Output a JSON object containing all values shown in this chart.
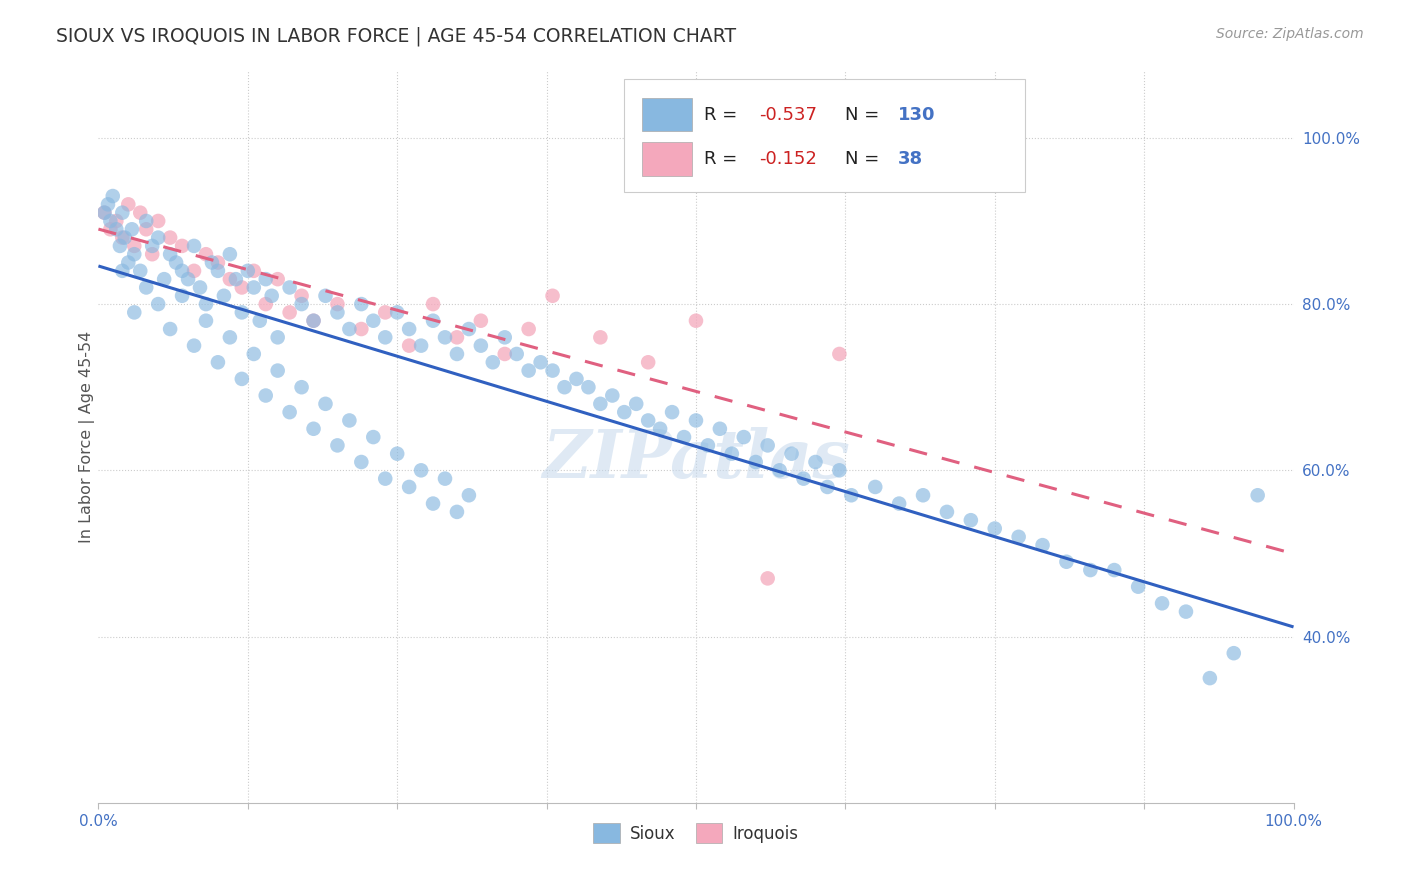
{
  "title": "SIOUX VS IROQUOIS IN LABOR FORCE | AGE 45-54 CORRELATION CHART",
  "source": "Source: ZipAtlas.com",
  "ylabel": "In Labor Force | Age 45-54",
  "legend_sioux": "Sioux",
  "legend_iroquois": "Iroquois",
  "r_sioux": -0.537,
  "n_sioux": 130,
  "r_iroquois": -0.152,
  "n_iroquois": 38,
  "sioux_color": "#88b8e0",
  "iroquois_color": "#f4a8bc",
  "sioux_line_color": "#3060c0",
  "iroquois_line_color": "#e06080",
  "watermark": "ZIPatlas",
  "bg_color": "#ffffff",
  "grid_color": "#cccccc",
  "tick_color": "#4472c4",
  "title_color": "#333333",
  "source_color": "#999999",
  "ylabel_color": "#555555",
  "sioux_x": [
    0.5,
    0.8,
    1.0,
    1.2,
    1.5,
    1.8,
    2.0,
    2.2,
    2.5,
    2.8,
    3.0,
    3.5,
    4.0,
    4.5,
    5.0,
    5.5,
    6.0,
    6.5,
    7.0,
    7.5,
    8.0,
    8.5,
    9.0,
    9.5,
    10.0,
    10.5,
    11.0,
    11.5,
    12.0,
    12.5,
    13.0,
    13.5,
    14.0,
    14.5,
    15.0,
    16.0,
    17.0,
    18.0,
    19.0,
    20.0,
    21.0,
    22.0,
    23.0,
    24.0,
    25.0,
    26.0,
    27.0,
    28.0,
    29.0,
    30.0,
    31.0,
    32.0,
    33.0,
    34.0,
    35.0,
    36.0,
    37.0,
    38.0,
    39.0,
    40.0,
    41.0,
    42.0,
    43.0,
    44.0,
    45.0,
    46.0,
    47.0,
    48.0,
    49.0,
    50.0,
    51.0,
    52.0,
    53.0,
    54.0,
    55.0,
    56.0,
    57.0,
    58.0,
    59.0,
    60.0,
    61.0,
    62.0,
    63.0,
    65.0,
    67.0,
    69.0,
    71.0,
    73.0,
    75.0,
    77.0,
    79.0,
    81.0,
    83.0,
    85.0,
    87.0,
    89.0,
    91.0,
    93.0,
    95.0,
    97.0,
    2.0,
    3.0,
    4.0,
    5.0,
    6.0,
    7.0,
    8.0,
    9.0,
    10.0,
    11.0,
    12.0,
    13.0,
    14.0,
    15.0,
    16.0,
    17.0,
    18.0,
    19.0,
    20.0,
    21.0,
    22.0,
    23.0,
    24.0,
    25.0,
    26.0,
    27.0,
    28.0,
    29.0,
    30.0,
    31.0
  ],
  "sioux_y": [
    91,
    92,
    90,
    93,
    89,
    87,
    91,
    88,
    85,
    89,
    86,
    84,
    90,
    87,
    88,
    83,
    86,
    85,
    84,
    83,
    87,
    82,
    80,
    85,
    84,
    81,
    86,
    83,
    79,
    84,
    82,
    78,
    83,
    81,
    76,
    82,
    80,
    78,
    81,
    79,
    77,
    80,
    78,
    76,
    79,
    77,
    75,
    78,
    76,
    74,
    77,
    75,
    73,
    76,
    74,
    72,
    73,
    72,
    70,
    71,
    70,
    68,
    69,
    67,
    68,
    66,
    65,
    67,
    64,
    66,
    63,
    65,
    62,
    64,
    61,
    63,
    60,
    62,
    59,
    61,
    58,
    60,
    57,
    58,
    56,
    57,
    55,
    54,
    53,
    52,
    51,
    49,
    48,
    48,
    46,
    44,
    43,
    35,
    38,
    57,
    84,
    79,
    82,
    80,
    77,
    81,
    75,
    78,
    73,
    76,
    71,
    74,
    69,
    72,
    67,
    70,
    65,
    68,
    63,
    66,
    61,
    64,
    59,
    62,
    58,
    60,
    56,
    59,
    55,
    57
  ],
  "iroquois_x": [
    0.5,
    1.0,
    1.5,
    2.0,
    2.5,
    3.0,
    3.5,
    4.0,
    4.5,
    5.0,
    6.0,
    7.0,
    8.0,
    9.0,
    10.0,
    11.0,
    12.0,
    13.0,
    14.0,
    15.0,
    16.0,
    17.0,
    18.0,
    20.0,
    22.0,
    24.0,
    26.0,
    28.0,
    30.0,
    32.0,
    34.0,
    36.0,
    38.0,
    42.0,
    46.0,
    50.0,
    56.0,
    62.0
  ],
  "iroquois_y": [
    91,
    89,
    90,
    88,
    92,
    87,
    91,
    89,
    86,
    90,
    88,
    87,
    84,
    86,
    85,
    83,
    82,
    84,
    80,
    83,
    79,
    81,
    78,
    80,
    77,
    79,
    75,
    80,
    76,
    78,
    74,
    77,
    81,
    76,
    73,
    78,
    47,
    74
  ],
  "xlim": [
    0,
    100
  ],
  "ylim": [
    20,
    108
  ],
  "yticks": [
    100,
    80,
    60,
    40
  ],
  "yticklabels": [
    "100.0%",
    "80.0%",
    "60.0%",
    "40.0%"
  ],
  "xtick_positions": [
    0,
    12.5,
    25,
    37.5,
    50,
    62.5,
    75,
    87.5,
    100
  ],
  "xtick_labels": [
    "0.0%",
    "",
    "",
    "",
    "",
    "",
    "",
    "",
    "100.0%"
  ],
  "grid_yticks": [
    100,
    80,
    60,
    40
  ],
  "grid_xticks": [
    12.5,
    25,
    37.5,
    50,
    62.5,
    75,
    87.5
  ]
}
